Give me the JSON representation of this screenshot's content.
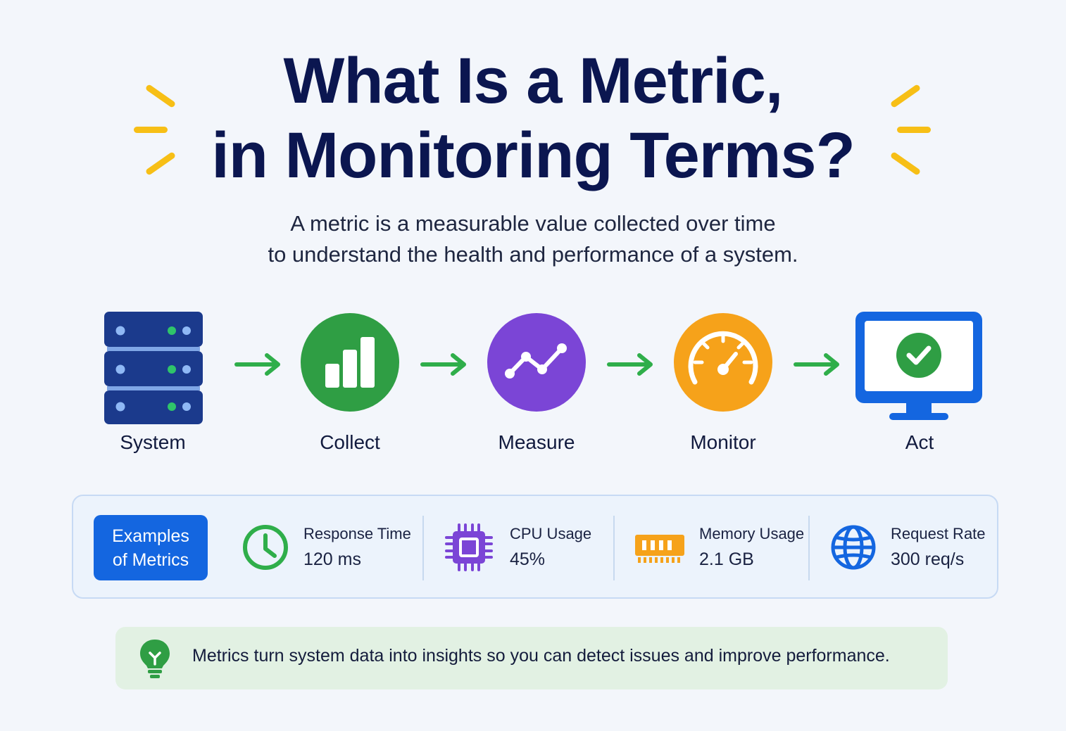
{
  "title": {
    "line1": "What Is a Metric,",
    "line2": "in Monitoring Terms?"
  },
  "subtitle": {
    "line1": "A metric is a measurable value collected over time",
    "line2": "to understand the health and performance of a system."
  },
  "flow": {
    "steps": [
      {
        "label": "System",
        "icon": "server-stack-icon",
        "color": "#1b3a8c"
      },
      {
        "label": "Collect",
        "icon": "bar-chart-icon",
        "color": "#2f9e44"
      },
      {
        "label": "Measure",
        "icon": "line-trend-icon",
        "color": "#7b45d6"
      },
      {
        "label": "Monitor",
        "icon": "gauge-icon",
        "color": "#f6a21a"
      },
      {
        "label": "Act",
        "icon": "monitor-check-icon",
        "color": "#1466e0"
      }
    ],
    "arrow_color": "#2fae4a"
  },
  "examples": {
    "badge_line1": "Examples",
    "badge_line2": "of Metrics",
    "metrics": [
      {
        "label": "Response Time",
        "value": "120 ms",
        "icon": "clock-icon",
        "color": "#2fae4a"
      },
      {
        "label": "CPU Usage",
        "value": "45%",
        "icon": "cpu-chip-icon",
        "color": "#7b45d6"
      },
      {
        "label": "Memory Usage",
        "value": "2.1 GB",
        "icon": "memory-ram-icon",
        "color": "#f6a21a"
      },
      {
        "label": "Request Rate",
        "value": "300 req/s",
        "icon": "globe-icon",
        "color": "#1466e0"
      }
    ]
  },
  "tip": {
    "icon": "lightbulb-icon",
    "text": "Metrics turn system data into insights so you can detect issues and improve performance."
  }
}
